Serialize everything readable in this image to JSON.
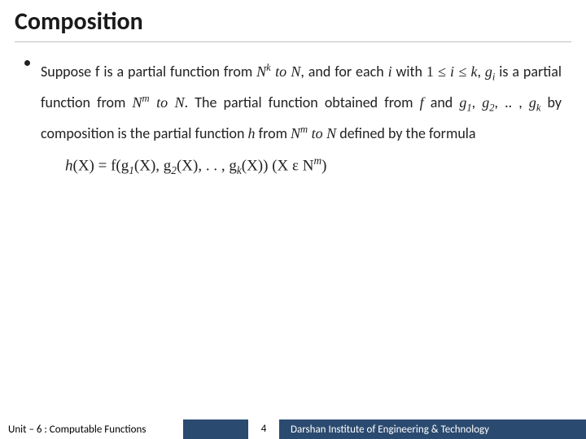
{
  "title": "Composition",
  "p1a": "Suppose f is a partial function from ",
  "Nk": "N",
  "k": "k",
  "toN1": " to N",
  "p1b": ", and for each ",
  "i1": "i",
  "p1c": " with ",
  "oneLe": "1 ≤",
  "iLeK": "i ≤ k",
  "comma1": ", ",
  "gi": "g",
  "gi_sub": "i",
  "p2a": " is a partial function from ",
  "Nm": "N",
  "m": "m",
  "toN2": " to N",
  "p2b": ". The partial function obtained from ",
  "f2": "f",
  "and": " and ",
  "g1": "g",
  "g1s": "1",
  "g2": "g",
  "g2s": "2",
  "dots1": ", .. , ",
  "gk": "g",
  "gks": "k",
  "p3a": " by composition is the partial function ",
  "h": "h",
  "from": " from ",
  "Nm2": "N",
  "m2": "m",
  "toN3": " to N",
  "p3b": " defined by the formula",
  "formula_h": "h",
  "formula_X1": "(X) = f(g",
  "f_g1s": "1",
  "formula_X2": "(X), g",
  "f_g2s": "2",
  "formula_X3": "(X), . . , g",
  "f_gks": "k",
  "formula_X4": "(X))  (X ε N",
  "f_m": "m",
  "formula_end": ")",
  "footer_left": "Unit – 6  : Computable Functions",
  "footer_page": "4",
  "footer_right": "Darshan Institute of Engineering & Technology"
}
